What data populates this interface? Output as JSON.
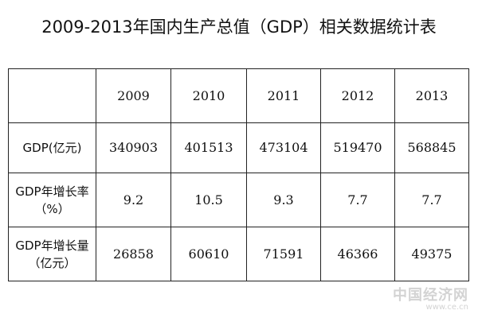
{
  "title": "2009-2013年国内生产总值（GDP）相关数据统计表",
  "table": {
    "corner": "",
    "years": [
      "2009",
      "2010",
      "2011",
      "2012",
      "2013"
    ],
    "rows": [
      {
        "label": "GDP(亿元)",
        "label_line2": "",
        "values": [
          "340903",
          "401513",
          "473104",
          "519470",
          "568845"
        ]
      },
      {
        "label": "GDP年增长率",
        "label_line2": "（%）",
        "values": [
          "9.2",
          "10.5",
          "9.3",
          "7.7",
          "7.7"
        ]
      },
      {
        "label": "GDP年增长量",
        "label_line2": "（亿元）",
        "values": [
          "26858",
          "60610",
          "71591",
          "46366",
          "49375"
        ]
      }
    ]
  },
  "watermark": {
    "main": "中国经济网",
    "url": "www.ce.cn"
  },
  "chart_data": {
    "type": "table",
    "title": "2009-2013年国内生产总值（GDP）相关数据统计表",
    "columns": [
      "2009",
      "2010",
      "2011",
      "2012",
      "2013"
    ],
    "rows": [
      {
        "name": "GDP(亿元)",
        "values": [
          340903,
          401513,
          473104,
          519470,
          568845
        ]
      },
      {
        "name": "GDP年增长率（%）",
        "values": [
          9.2,
          10.5,
          9.3,
          7.7,
          7.7
        ]
      },
      {
        "name": "GDP年增长量（亿元）",
        "values": [
          26858,
          60610,
          71591,
          46366,
          49375
        ]
      }
    ]
  }
}
